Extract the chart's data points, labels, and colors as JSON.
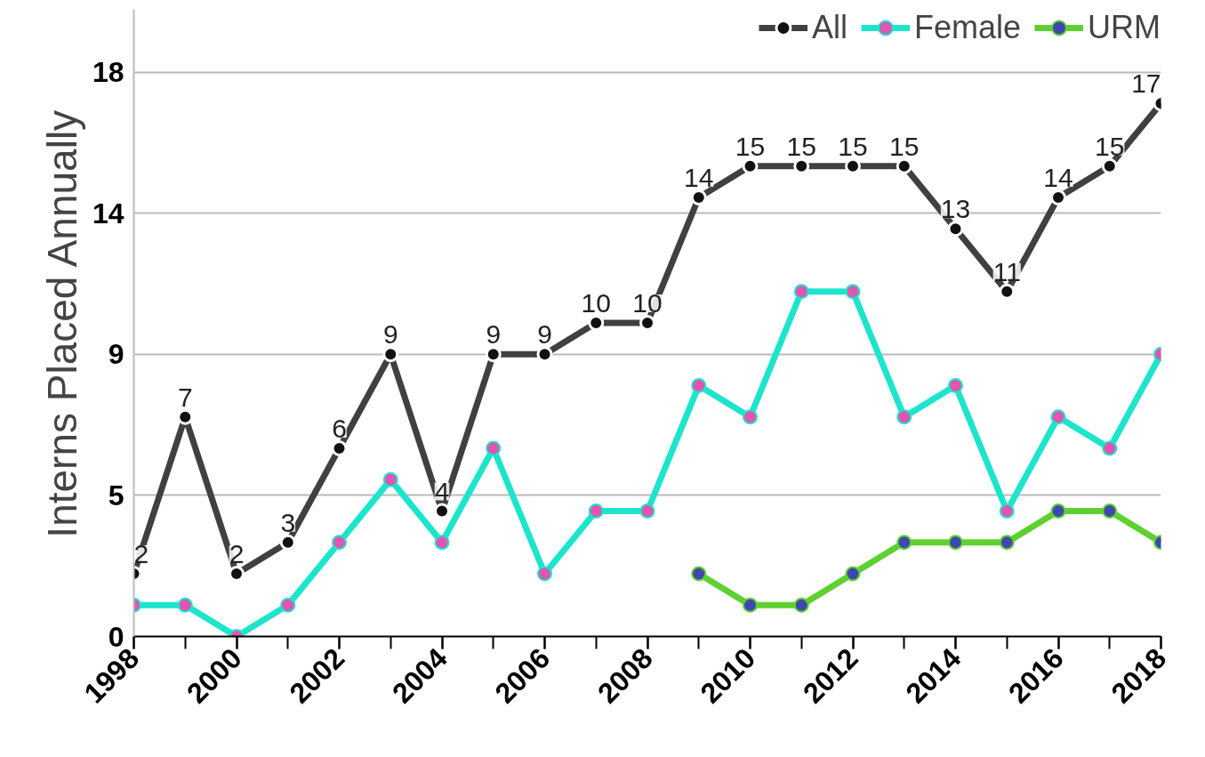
{
  "chart_data": {
    "type": "line",
    "ylabel": "Interns Placed Annually",
    "x": [
      1998,
      1999,
      2000,
      2001,
      2002,
      2003,
      2004,
      2005,
      2006,
      2007,
      2008,
      2009,
      2010,
      2011,
      2012,
      2013,
      2014,
      2015,
      2016,
      2017,
      2018
    ],
    "xlim": [
      1998,
      2018
    ],
    "xticks": [
      1998,
      2000,
      2002,
      2004,
      2006,
      2008,
      2010,
      2012,
      2014,
      2016,
      2018
    ],
    "ylim": [
      0,
      20
    ],
    "yticks": [
      0,
      {
        "value": 4.5,
        "label": "5"
      },
      9,
      {
        "value": 13.5,
        "label": "14"
      },
      18
    ],
    "grid": "y",
    "legend": "top right",
    "marker": "circle",
    "line_style": "solid",
    "series": [
      {
        "name": "All",
        "color": "#404040",
        "values": [
          2,
          7,
          2,
          3,
          6,
          9,
          4,
          9,
          9,
          10,
          10,
          14,
          15,
          15,
          15,
          15,
          13,
          11,
          14,
          15,
          17
        ],
        "value_labels": [
          "2",
          "7",
          "2",
          "3",
          "6",
          "9",
          "4",
          "9",
          "9",
          "10",
          "10",
          "14",
          "15",
          "15",
          "15",
          "15",
          "13",
          "11",
          "14",
          "15",
          "17"
        ]
      },
      {
        "name": "Female",
        "color": "#1de5cd",
        "values": [
          1,
          1,
          0,
          1,
          3,
          5,
          3,
          6,
          2,
          4,
          4,
          8,
          7,
          11,
          11,
          7,
          8,
          4,
          7,
          6,
          9
        ]
      },
      {
        "name": "URM",
        "color": "#5ed130",
        "values": [
          null,
          null,
          null,
          null,
          null,
          null,
          null,
          null,
          null,
          null,
          null,
          2,
          1,
          1,
          2,
          3,
          3,
          3,
          4,
          4,
          3
        ]
      }
    ]
  }
}
